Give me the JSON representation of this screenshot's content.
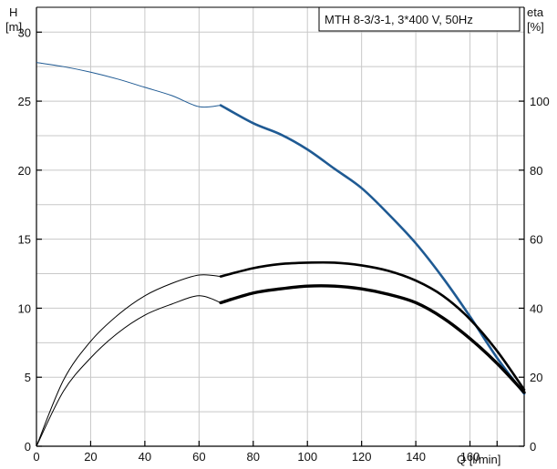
{
  "chart_data": {
    "type": "line",
    "title": "MTH 8-3/3-1, 3*400 V, 50Hz",
    "x_label": "Q [l/min]",
    "y_left_label_line1": "H",
    "y_left_label_line2": "[m]",
    "y_right_label_line1": "eta",
    "y_right_label_line2": "[%]",
    "xlim": [
      0,
      180
    ],
    "ylim_left": [
      0,
      31.8
    ],
    "ylim_right": [
      0,
      127.2
    ],
    "x_ticks": [
      0,
      20,
      40,
      60,
      80,
      100,
      120,
      140,
      160
    ],
    "y_left_ticks": [
      0,
      5,
      10,
      15,
      20,
      25,
      30
    ],
    "y_right_ticks": [
      0,
      20,
      40,
      60,
      80,
      100
    ],
    "grid": true,
    "operating_range_start": 68,
    "series": [
      {
        "id": "head",
        "axis": "left",
        "color": "#1f5a93",
        "x": [
          0,
          10,
          20,
          30,
          40,
          50,
          60,
          68,
          80,
          90,
          100,
          110,
          120,
          130,
          140,
          150,
          160,
          170,
          180
        ],
        "y": [
          27.8,
          27.5,
          27.1,
          26.6,
          26.0,
          25.4,
          24.6,
          24.7,
          23.4,
          22.6,
          21.5,
          20.1,
          18.7,
          16.8,
          14.7,
          12.2,
          9.4,
          6.4,
          3.8
        ]
      },
      {
        "id": "efficiency-upper",
        "axis": "left",
        "color": "#000000",
        "x": [
          0,
          10,
          20,
          30,
          40,
          50,
          60,
          68,
          80,
          90,
          100,
          110,
          120,
          130,
          140,
          150,
          160,
          170,
          180
        ],
        "y": [
          0,
          4.8,
          7.6,
          9.5,
          10.9,
          11.8,
          12.4,
          12.3,
          12.9,
          13.2,
          13.3,
          13.3,
          13.1,
          12.7,
          12.0,
          10.9,
          9.2,
          6.9,
          4.1
        ]
      },
      {
        "id": "efficiency-lower",
        "axis": "left",
        "color": "#000000",
        "x": [
          0,
          10,
          20,
          30,
          40,
          50,
          60,
          68,
          80,
          90,
          100,
          110,
          120,
          130,
          140,
          150,
          160,
          170,
          180
        ],
        "y": [
          0,
          4.0,
          6.4,
          8.2,
          9.5,
          10.3,
          10.9,
          10.4,
          11.1,
          11.4,
          11.6,
          11.6,
          11.4,
          11.0,
          10.4,
          9.3,
          7.8,
          6.0,
          3.9
        ]
      }
    ]
  }
}
